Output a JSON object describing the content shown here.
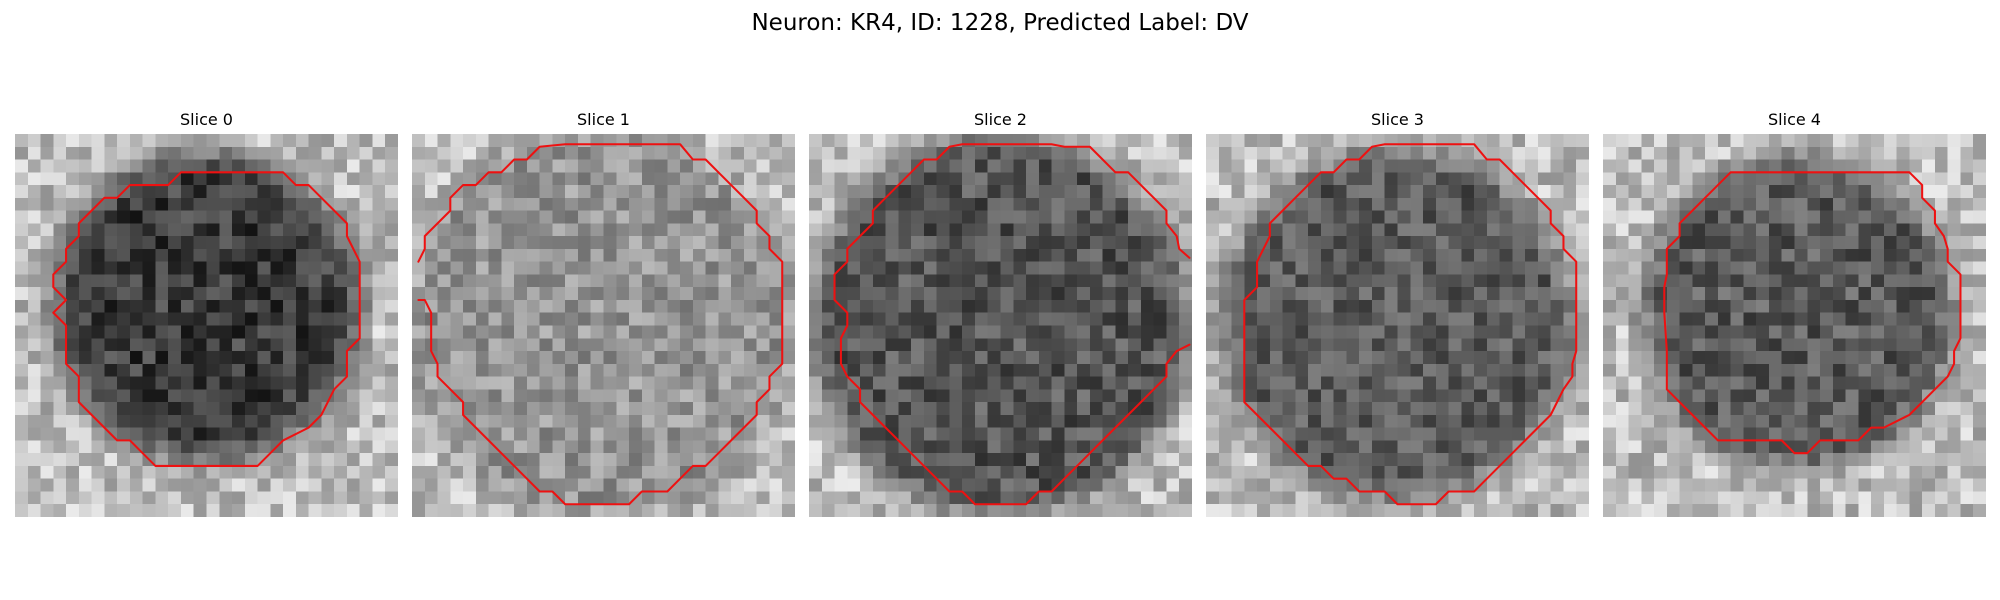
{
  "figure": {
    "title": "Neuron: KR4, ID: 1228, Predicted Label: DV"
  },
  "slices": [
    {
      "title": "Slice 0"
    },
    {
      "title": "Slice 1"
    },
    {
      "title": "Slice 2"
    },
    {
      "title": "Slice 3"
    },
    {
      "title": "Slice 4"
    }
  ],
  "style": {
    "contour_color": "#ee1111",
    "background_color": "#ffffff",
    "image_colormap": "grayscale"
  }
}
